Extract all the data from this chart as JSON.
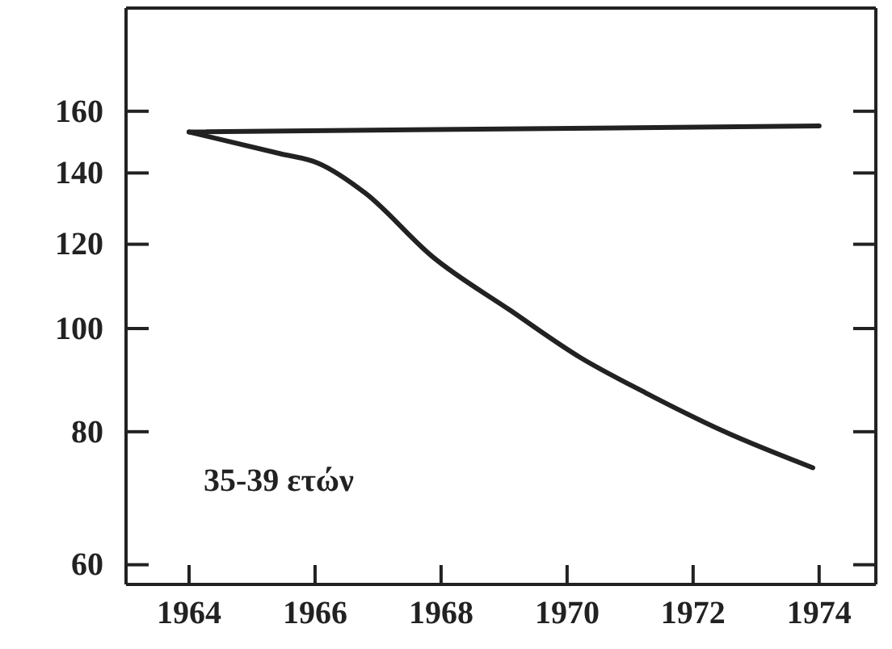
{
  "chart_data": {
    "type": "line",
    "log": "y",
    "x": [
      1964,
      1965.44,
      1966.05,
      1966.8,
      1967.85,
      1969.1,
      1970.2,
      1971.25,
      1972.5,
      1973.9
    ],
    "series": [
      {
        "color": "#222222",
        "x": [
          1964,
          1974
        ],
        "values": [
          153,
          155
        ]
      },
      {
        "color": "#222222",
        "values": [
          153,
          146,
          143,
          134,
          117,
          104,
          94,
          87,
          80,
          74
        ]
      }
    ],
    "xlim": [
      1963,
      1974.9
    ],
    "xticks": [
      1964,
      1966,
      1968,
      1970,
      1972,
      1974
    ],
    "ylim": [
      57.5,
      200
    ],
    "yticks": [
      60,
      80,
      100,
      120,
      140,
      160
    ],
    "grid": false,
    "marker": "none",
    "line_style": "solid",
    "annotations": [
      "35-39 ετών"
    ]
  }
}
